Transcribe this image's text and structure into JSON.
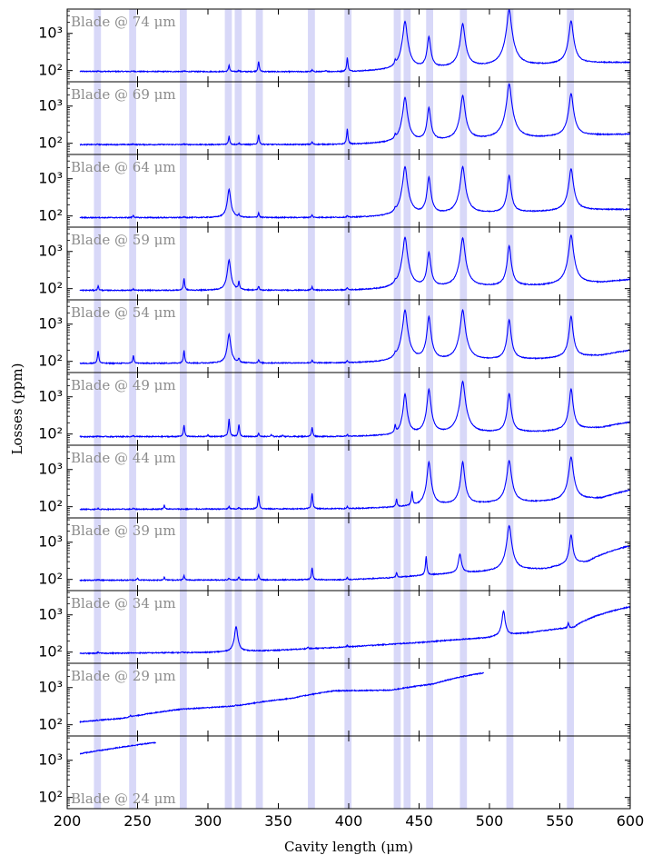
{
  "chart_data": {
    "type": "line",
    "xlabel": "Cavity length (μm)",
    "ylabel": "Losses (ppm)",
    "xlim": [
      200,
      600
    ],
    "ylim": [
      50,
      4500
    ],
    "yscale": "log",
    "x_ticks": [
      200,
      250,
      300,
      350,
      400,
      450,
      500,
      550,
      600
    ],
    "y_ticks": [
      {
        "value": 100,
        "label": "10²"
      },
      {
        "value": 1000,
        "label": "10³"
      }
    ],
    "line_color": "#0000ff",
    "band_color": "#d8d8f8",
    "grid": false,
    "highlight_bands": [
      [
        219,
        224
      ],
      [
        244,
        249
      ],
      [
        280,
        285
      ],
      [
        312,
        317
      ],
      [
        319,
        324
      ],
      [
        334,
        339
      ],
      [
        371,
        376
      ],
      [
        397,
        402
      ],
      [
        432,
        437
      ],
      [
        439,
        444
      ],
      [
        455,
        460
      ],
      [
        479,
        484
      ],
      [
        512,
        517
      ],
      [
        555,
        560
      ]
    ],
    "panels": [
      {
        "label": "Blade @ 74 μm",
        "label_pos": "top-left",
        "baseline": [
          [
            209,
            95
          ],
          [
            400,
            92
          ],
          [
            430,
            100
          ],
          [
            470,
            115
          ],
          [
            540,
            140
          ],
          [
            575,
            160
          ],
          [
            600,
            165
          ]
        ],
        "peaks": [
          [
            222,
            3
          ],
          [
            247,
            3
          ],
          [
            283,
            4
          ],
          [
            315,
            48
          ],
          [
            322,
            8
          ],
          [
            336,
            80
          ],
          [
            374,
            10
          ],
          [
            384,
            8
          ],
          [
            399,
            130
          ],
          [
            433,
            45
          ],
          [
            440,
            2000
          ],
          [
            457,
            700
          ],
          [
            481,
            1700
          ],
          [
            514,
            4200
          ],
          [
            558,
            2000
          ]
        ]
      },
      {
        "label": "Blade @ 69 μm",
        "label_pos": "top-left",
        "baseline": [
          [
            209,
            92
          ],
          [
            400,
            92
          ],
          [
            430,
            100
          ],
          [
            470,
            115
          ],
          [
            540,
            140
          ],
          [
            575,
            165
          ],
          [
            600,
            175
          ]
        ],
        "peaks": [
          [
            222,
            3
          ],
          [
            247,
            4
          ],
          [
            283,
            4
          ],
          [
            315,
            65
          ],
          [
            322,
            10
          ],
          [
            336,
            75
          ],
          [
            374,
            15
          ],
          [
            399,
            150
          ],
          [
            433,
            35
          ],
          [
            440,
            1600
          ],
          [
            457,
            800
          ],
          [
            481,
            1800
          ],
          [
            514,
            3800
          ],
          [
            558,
            2000
          ]
        ]
      },
      {
        "label": "Blade @ 64 μm",
        "label_pos": "top-left",
        "baseline": [
          [
            209,
            90
          ],
          [
            400,
            90
          ],
          [
            430,
            95
          ],
          [
            470,
            110
          ],
          [
            540,
            130
          ],
          [
            570,
            145
          ],
          [
            600,
            150
          ]
        ],
        "peaks": [
          [
            222,
            3
          ],
          [
            247,
            15
          ],
          [
            283,
            4
          ],
          [
            315,
            430
          ],
          [
            322,
            15
          ],
          [
            336,
            30
          ],
          [
            374,
            15
          ],
          [
            399,
            10
          ],
          [
            433,
            25
          ],
          [
            440,
            2000
          ],
          [
            457,
            1000
          ],
          [
            481,
            2000
          ],
          [
            514,
            1100
          ],
          [
            558,
            1700
          ]
        ]
      },
      {
        "label": "Blade @ 59 μm",
        "label_pos": "top-left",
        "baseline": [
          [
            209,
            90
          ],
          [
            400,
            90
          ],
          [
            430,
            95
          ],
          [
            470,
            105
          ],
          [
            540,
            120
          ],
          [
            580,
            145
          ],
          [
            600,
            175
          ]
        ],
        "peaks": [
          [
            222,
            28
          ],
          [
            247,
            8
          ],
          [
            283,
            100
          ],
          [
            315,
            500
          ],
          [
            322,
            60
          ],
          [
            336,
            25
          ],
          [
            374,
            20
          ],
          [
            399,
            15
          ],
          [
            433,
            20
          ],
          [
            440,
            2300
          ],
          [
            457,
            850
          ],
          [
            481,
            2200
          ],
          [
            514,
            1300
          ],
          [
            558,
            2600
          ]
        ]
      },
      {
        "label": "Blade @ 54 μm",
        "label_pos": "top-left",
        "baseline": [
          [
            209,
            88
          ],
          [
            400,
            90
          ],
          [
            430,
            92
          ],
          [
            470,
            100
          ],
          [
            540,
            115
          ],
          [
            580,
            145
          ],
          [
            600,
            200
          ]
        ],
        "peaks": [
          [
            222,
            100
          ],
          [
            247,
            55
          ],
          [
            283,
            110
          ],
          [
            315,
            450
          ],
          [
            322,
            25
          ],
          [
            336,
            20
          ],
          [
            374,
            15
          ],
          [
            399,
            12
          ],
          [
            433,
            25
          ],
          [
            440,
            2300
          ],
          [
            457,
            1500
          ],
          [
            481,
            2300
          ],
          [
            514,
            1200
          ],
          [
            558,
            1500
          ]
        ]
      },
      {
        "label": "Blade @ 49 μm",
        "label_pos": "top-left",
        "baseline": [
          [
            209,
            85
          ],
          [
            400,
            85
          ],
          [
            430,
            90
          ],
          [
            470,
            100
          ],
          [
            540,
            115
          ],
          [
            580,
            150
          ],
          [
            600,
            210
          ]
        ],
        "peaks": [
          [
            222,
            3
          ],
          [
            247,
            5
          ],
          [
            283,
            90
          ],
          [
            300,
            10
          ],
          [
            315,
            170
          ],
          [
            322,
            95
          ],
          [
            336,
            20
          ],
          [
            345,
            10
          ],
          [
            353,
            8
          ],
          [
            374,
            65
          ],
          [
            399,
            12
          ],
          [
            433,
            70
          ],
          [
            440,
            1100
          ],
          [
            457,
            1500
          ],
          [
            481,
            2500
          ],
          [
            514,
            1100
          ],
          [
            558,
            1500
          ]
        ]
      },
      {
        "label": "Blade @ 44 μm",
        "label_pos": "top-left",
        "baseline": [
          [
            209,
            85
          ],
          [
            400,
            88
          ],
          [
            430,
            95
          ],
          [
            470,
            110
          ],
          [
            540,
            135
          ],
          [
            580,
            170
          ],
          [
            600,
            280
          ]
        ],
        "peaks": [
          [
            222,
            5
          ],
          [
            247,
            4
          ],
          [
            269,
            25
          ],
          [
            315,
            15
          ],
          [
            322,
            8
          ],
          [
            336,
            110
          ],
          [
            374,
            140
          ],
          [
            399,
            12
          ],
          [
            434,
            60
          ],
          [
            445,
            150
          ],
          [
            457,
            1500
          ],
          [
            481,
            1500
          ],
          [
            514,
            1600
          ],
          [
            558,
            2000
          ]
        ]
      },
      {
        "label": "Blade @ 39 μm",
        "label_pos": "top-left",
        "baseline": [
          [
            209,
            95
          ],
          [
            400,
            98
          ],
          [
            430,
            110
          ],
          [
            470,
            140
          ],
          [
            540,
            190
          ],
          [
            570,
            300
          ],
          [
            600,
            800
          ]
        ],
        "peaks": [
          [
            222,
            5
          ],
          [
            250,
            15
          ],
          [
            269,
            20
          ],
          [
            283,
            30
          ],
          [
            315,
            12
          ],
          [
            322,
            20
          ],
          [
            336,
            35
          ],
          [
            374,
            110
          ],
          [
            399,
            15
          ],
          [
            434,
            40
          ],
          [
            455,
            290
          ],
          [
            479,
            330
          ],
          [
            514,
            2600
          ],
          [
            558,
            1300
          ]
        ]
      },
      {
        "label": "Blade @ 34 μm",
        "label_pos": "top-left",
        "baseline": [
          [
            209,
            92
          ],
          [
            300,
            98
          ],
          [
            350,
            112
          ],
          [
            400,
            138
          ],
          [
            450,
            180
          ],
          [
            500,
            245
          ],
          [
            530,
            340
          ],
          [
            560,
            470
          ],
          [
            600,
            1650
          ]
        ],
        "peaks": [
          [
            222,
            8
          ],
          [
            282,
            5
          ],
          [
            320,
            380
          ],
          [
            371,
            15
          ],
          [
            399,
            15
          ],
          [
            510,
            1000
          ],
          [
            556,
            150
          ]
        ]
      },
      {
        "label": "Blade @ 29 μm",
        "label_pos": "top-left",
        "end_x": 496,
        "baseline": [
          [
            209,
            120
          ],
          [
            240,
            150
          ],
          [
            280,
            260
          ],
          [
            320,
            320
          ],
          [
            360,
            520
          ],
          [
            390,
            820
          ],
          [
            430,
            850
          ],
          [
            460,
            1250
          ],
          [
            496,
            2500
          ]
        ],
        "peaks": [
          [
            245,
            20
          ],
          [
            320,
            30
          ]
        ]
      },
      {
        "label": "Blade @ 24 μm",
        "label_pos": "bottom-left",
        "end_x": 263,
        "baseline": [
          [
            209,
            1500
          ],
          [
            230,
            2000
          ],
          [
            263,
            3000
          ]
        ],
        "peaks": []
      }
    ]
  }
}
